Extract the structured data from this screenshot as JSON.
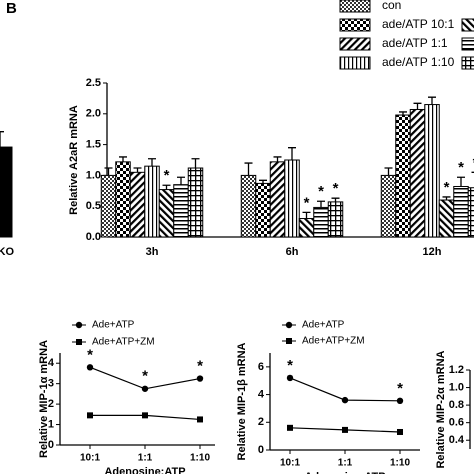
{
  "chart_data": [
    {
      "type": "bar",
      "categories": [
        "KO"
      ],
      "ylim": [
        0,
        2.5
      ],
      "series": [
        {
          "name": null,
          "color": "#000000",
          "pattern": "solid",
          "values": [
            1.46
          ],
          "errors": [
            0.25
          ]
        }
      ]
    },
    {
      "type": "bar",
      "title": "B",
      "ylabel": "Relative A2aR mRNA",
      "categories": [
        "3h",
        "6h",
        "12h"
      ],
      "ylim": [
        0,
        2.5
      ],
      "yticks": [
        {
          "value": 0,
          "label": "0.0"
        },
        0.5,
        {
          "value": 1,
          "label": "1.0"
        },
        1.5,
        {
          "value": 2,
          "label": "2.0"
        },
        2.5
      ],
      "series": [
        {
          "name": "con",
          "color": "#000000",
          "pattern": "checker",
          "values": [
            1.0,
            1.0,
            1.0
          ],
          "errors": [
            0.12,
            0.2,
            0.12
          ],
          "significance": [
            null,
            null,
            null
          ]
        },
        {
          "name": "ade/ATP 10:1",
          "color": "#000000",
          "pattern": "checker-large",
          "values": [
            1.22,
            0.87,
            1.98
          ],
          "errors": [
            0.08,
            0.05,
            0.05
          ],
          "significance": [
            null,
            null,
            null
          ]
        },
        {
          "name": "ade/ATP 1:1",
          "color": "#000000",
          "pattern": "diagonal",
          "values": [
            1.05,
            1.22,
            2.07
          ],
          "errors": [
            0.07,
            0.08,
            0.1
          ],
          "significance": [
            null,
            null,
            null
          ]
        },
        {
          "name": "ade/ATP 1:10",
          "color": "#000000",
          "pattern": "vertical",
          "values": [
            1.15,
            1.25,
            2.15
          ],
          "errors": [
            0.12,
            0.2,
            0.12
          ],
          "significance": [
            null,
            null,
            null
          ]
        },
        {
          "name": null,
          "color": "#000000",
          "pattern": "diagonal-rev",
          "values": [
            0.77,
            0.3,
            0.6
          ],
          "errors": [
            0.07,
            0.1,
            0.05
          ],
          "significance": [
            "*",
            "*",
            "*"
          ]
        },
        {
          "name": null,
          "color": "#000000",
          "pattern": "horizontal",
          "values": [
            0.85,
            0.48,
            0.82
          ],
          "errors": [
            0.12,
            0.1,
            0.15
          ],
          "significance": [
            null,
            "*",
            "*"
          ]
        },
        {
          "name": null,
          "color": "#000000",
          "pattern": "grid",
          "values": [
            1.12,
            0.57,
            0.8
          ],
          "errors": [
            0.15,
            0.06,
            0.25
          ],
          "significance": [
            null,
            "*",
            "*"
          ]
        }
      ]
    },
    {
      "type": "line",
      "ylabel": "Relative MIP-1α mRNA",
      "xlabel": "Adenosine:ATP",
      "categories": [
        "10:1",
        "1:1",
        "1:10"
      ],
      "ylim": [
        0,
        4.5
      ],
      "yticks": [
        0,
        1,
        2,
        3,
        4
      ],
      "series": [
        {
          "name": "Ade+ATP",
          "color": "#000000",
          "marker": "circle",
          "values": [
            3.8,
            2.75,
            3.25
          ],
          "significance": [
            "*",
            "*",
            "*"
          ]
        },
        {
          "name": "Ade+ATP+ZM",
          "color": "#000000",
          "marker": "square",
          "values": [
            1.45,
            1.45,
            1.25
          ],
          "significance": [
            null,
            null,
            null
          ]
        }
      ]
    },
    {
      "type": "line",
      "ylabel": "Relative MIP-1β mRNA",
      "xlabel": "Adenosine:ATP",
      "categories": [
        "10:1",
        "1:1",
        "1:10"
      ],
      "ylim": [
        0,
        7
      ],
      "yticks": [
        0,
        2,
        4,
        6
      ],
      "series": [
        {
          "name": "Ade+ATP",
          "color": "#000000",
          "marker": "circle",
          "values": [
            5.2,
            3.6,
            3.55
          ],
          "significance": [
            "*",
            null,
            "*"
          ]
        },
        {
          "name": "Ade+ATP+ZM",
          "color": "#000000",
          "marker": "square",
          "values": [
            1.6,
            1.45,
            1.3
          ],
          "significance": [
            null,
            null,
            null
          ]
        }
      ]
    },
    {
      "type": "line",
      "ylabel": "Relative MIP-2α mRNA",
      "categories": [],
      "ylim": [
        0.3,
        1.2
      ],
      "yticks": [
        0.4,
        0.6,
        0.8,
        {
          "value": 1,
          "label": "1.0"
        },
        1.2
      ],
      "series": []
    }
  ]
}
